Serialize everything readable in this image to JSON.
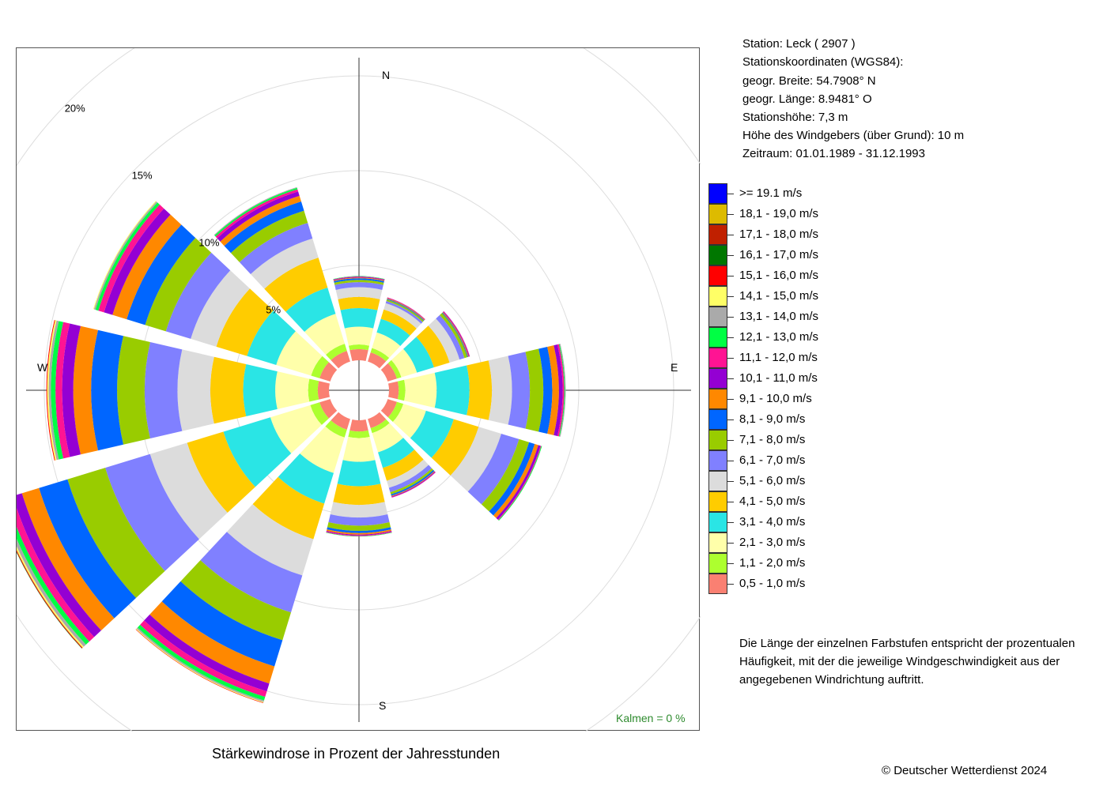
{
  "station": {
    "line1": "Station:  Leck  ( 2907 )",
    "line2": "Stationskoordinaten (WGS84):",
    "line3": "geogr. Breite: 54.7908° N",
    "line4": "geogr. Länge:   8.9481° O",
    "line5": "Stationshöhe: 7,3 m",
    "line6": "Höhe des Windgebers (über Grund): 10 m",
    "line7": "Zeitraum: 01.01.1989 - 31.12.1993"
  },
  "note": {
    "line1": "Die Länge der einzelnen Farbstufen entspricht der prozentualen",
    "line2": "Häufigkeit, mit der die jeweilige Windgeschwindigkeit aus der",
    "line3": "angegebenen Windrichtung auftritt."
  },
  "title": "Stärkewindrose in Prozent der Jahresstunden",
  "copyright": "© Deutscher Wetterdienst  2024",
  "kalmen": "Kalmen  =  0 %",
  "chart_data": {
    "type": "windrose",
    "unit": "%",
    "compass": {
      "N": "N",
      "E": "E",
      "S": "S",
      "W": "W"
    },
    "rings": [
      5,
      10,
      15,
      20
    ],
    "ring_labels": [
      "5%",
      "10%",
      "15%",
      "20%"
    ],
    "bins": [
      {
        "label": "0,5 - 1,0 m/s",
        "color": "#fa8072"
      },
      {
        "label": "1,1 - 2,0 m/s",
        "color": "#adff2f"
      },
      {
        "label": "2,1 - 3,0 m/s",
        "color": "#ffffaa"
      },
      {
        "label": "3,1 - 4,0 m/s",
        "color": "#2ae5e5"
      },
      {
        "label": "4,1 - 5,0 m/s",
        "color": "#ffcc00"
      },
      {
        "label": "5,1 - 6,0 m/s",
        "color": "#dcdcdc"
      },
      {
        "label": "6,1 - 7,0 m/s",
        "color": "#8080ff"
      },
      {
        "label": "7,1 - 8,0 m/s",
        "color": "#99cc00"
      },
      {
        "label": "8,1 - 9,0 m/s",
        "color": "#0066ff"
      },
      {
        "label": "9,1 - 10,0 m/s",
        "color": "#ff8800"
      },
      {
        "label": "10,1 - 11,0 m/s",
        "color": "#9400d3"
      },
      {
        "label": "11,1 - 12,0 m/s",
        "color": "#ff1493"
      },
      {
        "label": "12,1 - 13,0 m/s",
        "color": "#00ff44"
      },
      {
        "label": "13,1 - 14,0 m/s",
        "color": "#aaaaaa"
      },
      {
        "label": "14,1 - 15,0 m/s",
        "color": "#ffff66"
      },
      {
        "label": "15,1 - 16,0 m/s",
        "color": "#ff0000"
      },
      {
        "label": "16,1 - 17,0 m/s",
        "color": "#007700"
      },
      {
        "label": "17,1 - 18,0 m/s",
        "color": "#c02000"
      },
      {
        "label": "18,1 - 19,0 m/s",
        "color": "#ddbb00"
      },
      {
        "label": ">= 19.1 m/s",
        "color": "#0000ff"
      }
    ],
    "directions": [
      {
        "deg": 0,
        "values": [
          0.59,
          0.24,
          0.94,
          0.98,
          0.59,
          0.51,
          0.27,
          0.12,
          0.08,
          0.04,
          0.04,
          0.02,
          0.02
        ]
      },
      {
        "deg": 30,
        "values": [
          0.51,
          0.24,
          0.86,
          0.75,
          0.51,
          0.35,
          0.12,
          0.08,
          0.04,
          0.04,
          0.02,
          0.02
        ]
      },
      {
        "deg": 60,
        "values": [
          0.51,
          0.24,
          0.86,
          0.94,
          0.86,
          0.55,
          0.27,
          0.16,
          0.04,
          0.04,
          0.04,
          0.02
        ]
      },
      {
        "deg": 90,
        "values": [
          0.51,
          0.35,
          1.65,
          1.73,
          1.18,
          1.06,
          0.94,
          0.71,
          0.47,
          0.35,
          0.2,
          0.08,
          0.04,
          0.04
        ]
      },
      {
        "deg": 120,
        "values": [
          0.51,
          0.35,
          1.25,
          1.53,
          1.37,
          1.25,
          0.98,
          0.55,
          0.31,
          0.2,
          0.12,
          0.04,
          0.04
        ]
      },
      {
        "deg": 150,
        "values": [
          0.51,
          0.27,
          1.06,
          0.86,
          0.71,
          0.39,
          0.24,
          0.12,
          0.08,
          0.04,
          0.04,
          0.02
        ]
      },
      {
        "deg": 180,
        "values": [
          0.59,
          0.35,
          1.25,
          1.29,
          0.98,
          0.67,
          0.43,
          0.27,
          0.12,
          0.08,
          0.04,
          0.04,
          0.02
        ]
      },
      {
        "deg": 210,
        "values": [
          0.59,
          0.43,
          1.96,
          1.69,
          1.96,
          2.0,
          2.04,
          1.53,
          1.45,
          0.94,
          0.43,
          0.31,
          0.2,
          0.08,
          0.04,
          0.02
        ]
      },
      {
        "deg": 240,
        "values": [
          0.59,
          0.51,
          2.2,
          2.59,
          2.0,
          2.04,
          2.47,
          2.08,
          1.57,
          0.94,
          0.51,
          0.35,
          0.24,
          0.16,
          0.08,
          0.04,
          0.02
        ]
      },
      {
        "deg": 270,
        "values": [
          0.59,
          0.51,
          1.73,
          1.69,
          1.73,
          1.73,
          1.73,
          1.45,
          1.37,
          0.94,
          0.59,
          0.35,
          0.24,
          0.12,
          0.08,
          0.04
        ]
      },
      {
        "deg": 300,
        "values": [
          0.59,
          0.47,
          1.92,
          1.61,
          1.69,
          1.41,
          1.37,
          1.14,
          1.02,
          0.78,
          0.47,
          0.31,
          0.16,
          0.08,
          0.04
        ]
      },
      {
        "deg": 330,
        "values": [
          0.59,
          0.39,
          1.65,
          1.45,
          1.65,
          1.06,
          0.86,
          0.67,
          0.51,
          0.31,
          0.24,
          0.12,
          0.08,
          0.04
        ]
      }
    ]
  }
}
